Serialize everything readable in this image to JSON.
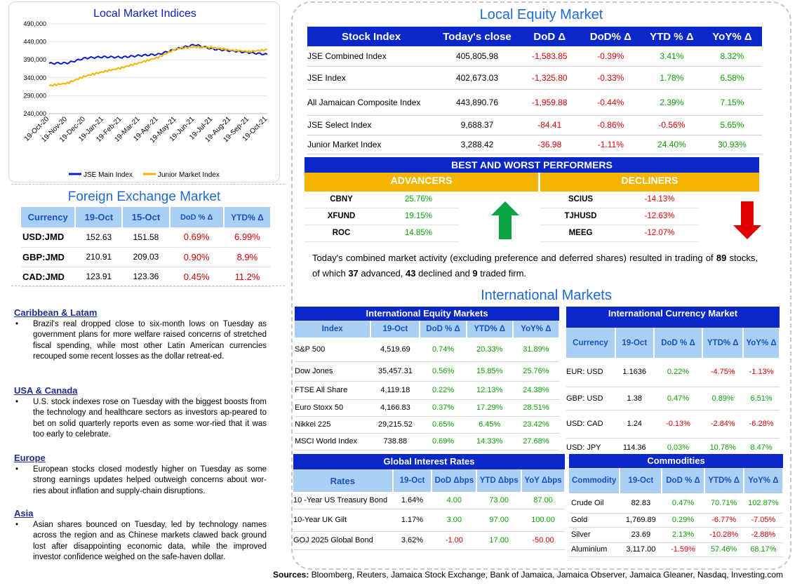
{
  "chart_data": {
    "type": "line",
    "title": "Local Market Indices",
    "x": [
      "19-Oct-20",
      "19-Nov-20",
      "19-Dec-20",
      "19-Jan-21",
      "19-Feb-21",
      "19-Mar-21",
      "19-Apr-21",
      "19-May-21",
      "19-Jun-21",
      "19-Jul-21",
      "19-Aug-21",
      "19-Sep-21",
      "19-Oct-21"
    ],
    "yticks": [
      "490,000",
      "440,000",
      "390,000",
      "340,000",
      "290,000",
      "240,000"
    ],
    "ylim": [
      240000,
      490000
    ],
    "series": [
      {
        "name": "JSE Main Index",
        "color": "#0a1fc8",
        "values": [
          380000,
          381000,
          395000,
          398000,
          397000,
          402000,
          405000,
          420000,
          432000,
          420000,
          415000,
          410000,
          405000
        ]
      },
      {
        "name": "Junior Market Index",
        "color": "#f5b400",
        "values": [
          318000,
          325000,
          345000,
          357000,
          368000,
          382000,
          397000,
          421000,
          426000,
          424000,
          417000,
          413000,
          418000
        ]
      }
    ],
    "legend_position": "bottom"
  },
  "fx": {
    "title": "Foreign Exchange Market",
    "headers": [
      "Currency",
      "19-Oct",
      "15-Oct",
      "DoD % Δ",
      "YTD% Δ"
    ],
    "rows": [
      [
        "USD:JMD",
        "152.63",
        "151.58",
        "0.69%",
        "6.99%"
      ],
      [
        "GBP:JMD",
        "210.91",
        "209.03",
        "0.90%",
        "8.9%"
      ],
      [
        "CAD:JMD",
        "123.91",
        "123.36",
        "0.45%",
        "11.2%"
      ]
    ]
  },
  "news": [
    {
      "heading": "Caribbean & Latam",
      "text": "Brazil's real dropped close to six-month lows on Tuesday as government plans for more welfare raised concerns of stretched fiscal spending, while most other Latin American currencies recouped some recent losses as the dollar retreat-ed."
    },
    {
      "heading": "USA & Canada",
      "text": "U.S. stock indexes rose on Tuesday with the biggest boosts from the technology and healthcare sectors as investors ap-peared to bet on solid quarterly reports even as some wor-ried that it was too early to celebrate."
    },
    {
      "heading": "Europe",
      "text": "European stocks closed modestly higher on Tuesday as some strong earnings updates helped outweigh concerns about wor-ries about inflation and supply-chain disruptions."
    },
    {
      "heading": "Asia",
      "text": "Asian shares bounced on Tuesday, led by technology names across the region and as Chinese markets clawed back ground lost after disappointing economic data, while the improved investor confidence weighed on the safe-haven dollar."
    }
  ],
  "equity": {
    "title": "Local Equity Market",
    "headers": [
      "Stock Index",
      "Today's close",
      "DoD  Δ",
      "DoD% Δ",
      "YTD % Δ",
      "YoY% Δ"
    ],
    "rows": [
      [
        "JSE Combined Index",
        "405,805.98",
        "-1,583.85",
        "-0.39%",
        "3.41%",
        "8.32%"
      ],
      [
        "JSE Index",
        "402,673.03",
        "-1,325.80",
        "-0.33%",
        "1.78%",
        "6.58%"
      ],
      [
        "All Jamaican Composite Index",
        "443,890.76",
        "-1,959.88",
        "-0.44%",
        "2.39%",
        "7.15%"
      ],
      [
        "JSE Select Index",
        "9,688.37",
        "-84.41",
        "-0.86%",
        "-0.56%",
        "5.65%"
      ],
      [
        "Junior Market Index",
        "3,288.42",
        "-36.98",
        "-1.11%",
        "24.40%",
        "30.93%"
      ]
    ]
  },
  "performers": {
    "title": "BEST AND WORST PERFORMERS",
    "advancers_label": "ADVANCERS",
    "decliners_label": "DECLINERS",
    "advancers": [
      [
        "CBNY",
        "25.76%"
      ],
      [
        "XFUND",
        "19.15%"
      ],
      [
        "ROC",
        "14.85%"
      ]
    ],
    "decliners": [
      [
        "SCIUS",
        "-14.13%"
      ],
      [
        "TJHUSD",
        "-12.63%"
      ],
      [
        "MEEG",
        "-12.07%"
      ]
    ]
  },
  "summary": {
    "part1": "Today's combined market activity (excluding preference and deferred shares) resulted in trading of ",
    "traded": "89",
    "part2": " stocks, of which ",
    "advanced": "37",
    "part3": " advanced, ",
    "declined": "43",
    "part4": " declined and ",
    "firm": "9",
    "part5": " traded firm."
  },
  "intl_title": "International Markets",
  "intl_equity": {
    "title": "International Equity Markets",
    "headers": [
      "Index",
      "19-Oct",
      "DoD % Δ",
      "YTD% Δ",
      "YoY% Δ"
    ],
    "rows": [
      [
        "S&P 500",
        "4,519.69",
        "0.74%",
        "20.33%",
        "31.89%"
      ],
      [
        "Dow Jones",
        "35,457.31",
        "0.56%",
        "15.85%",
        "25.76%"
      ],
      [
        "FTSE All Share",
        "4,119.18",
        "0.22%",
        "12.13%",
        "24.38%"
      ],
      [
        "Euro Stoxx 50",
        "4,166.83",
        "0.37%",
        "17.29%",
        "28.51%"
      ],
      [
        "Nikkei 225",
        "29,215.52",
        "0.65%",
        "6.45%",
        "23.42%"
      ],
      [
        "MSCI World Index",
        "738.88",
        "0.69%",
        "14.33%",
        "27.68%"
      ]
    ]
  },
  "intl_currency": {
    "title": "International Currency Market",
    "headers": [
      "Currency",
      "19-Oct",
      "DoD % Δ",
      "YTD% Δ",
      "YoY% Δ"
    ],
    "rows": [
      [
        "EUR: USD",
        "1.1636",
        "0.22%",
        "-4.75%",
        "-1.13%"
      ],
      [
        "GBP: USD",
        "1.38",
        "0.47%",
        "0.89%",
        "6.51%"
      ],
      [
        "USD: CAD",
        "1.24",
        "-0.13%",
        "-2.84%",
        "-6.28%"
      ],
      [
        "USD: JPY",
        "114.36",
        "0.03%",
        "10.76%",
        "8.47%"
      ]
    ]
  },
  "rates": {
    "title": "Global Interest Rates",
    "headers": [
      "Rates",
      "19-Oct",
      "DoD Δbps",
      "YTD Δbps",
      "YoY Δbps"
    ],
    "rows": [
      [
        "10 -Year US Treasury Bond",
        "1.64%",
        "4.00",
        "73.00",
        "87.00"
      ],
      [
        "10-Year UK Gilt",
        "1.17%",
        "3.00",
        "97.00",
        "100.00"
      ],
      [
        "GOJ 2025 Global Bond",
        "3.62%",
        "-1.00",
        "17.00",
        "-50.00"
      ]
    ]
  },
  "commodities": {
    "title": "Commodities",
    "headers": [
      "Commodity",
      "19-Oct",
      "DoD % Δ",
      "YTD% Δ",
      "YoY% Δ"
    ],
    "rows": [
      [
        "Crude Oil",
        "82.83",
        "0.47%",
        "70.71%",
        "102.87%"
      ],
      [
        "Gold",
        "1,769.89",
        "0.29%",
        "-6.77%",
        "-7.05%"
      ],
      [
        "Silver",
        "23.69",
        "2.13%",
        "-10.28%",
        "-2.88%"
      ],
      [
        "Aluminium",
        "3,117.00",
        "-1.59%",
        "57.46%",
        "68.17%"
      ]
    ]
  },
  "sources": {
    "label": "Sources:",
    "text": " Bloomberg, Reuters, Jamaica Stock Exchange, Bank of Jamaica, Jamaica Observer, Jamaica Gleaner, Nasdaq, Investing.com"
  },
  "colors": {
    "positive": "#09a300",
    "negative": "#e00000",
    "header_blue": "#0a27c9",
    "light_blue": "#a9cff5",
    "gold": "#f5b400"
  }
}
